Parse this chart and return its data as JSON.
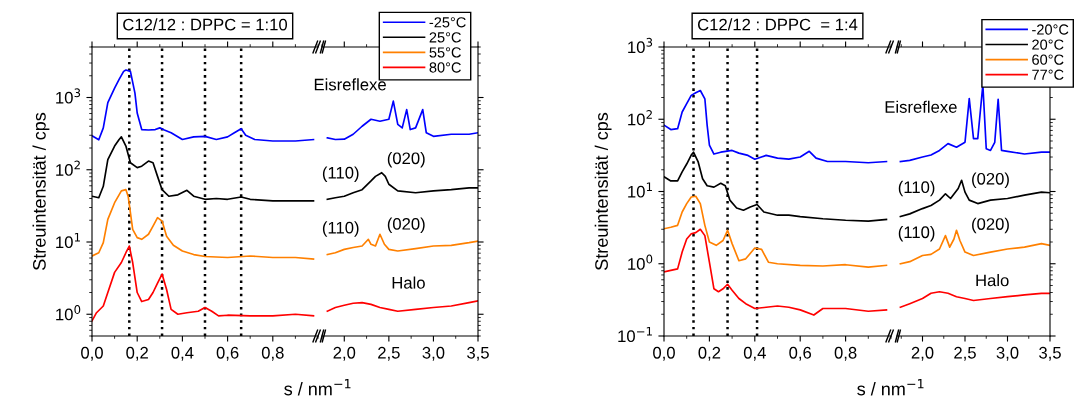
{
  "chart_data": [
    {
      "type": "line",
      "title": "C12/12 : DPPC = 1:10",
      "ylabel": "Streuintensität / cps",
      "xlabel": "s / nm$^{−1}$",
      "log": "y",
      "grid": false,
      "legend": false,
      "xlim": [
        0,
        1.0
      ],
      "xticks": [
        {
          "value": 0,
          "label": "0,0"
        },
        {
          "value": 0.2,
          "label": "0,2"
        },
        {
          "value": 0.4,
          "label": "0,4"
        },
        {
          "value": 0.6,
          "label": "0,6"
        },
        {
          "value": 0.8,
          "label": "0,8"
        }
      ],
      "ylim": [
        0.5,
        5000
      ],
      "yticks": [
        {
          "value": 1,
          "label": "10$^{0}$"
        },
        {
          "value": 10,
          "label": "10$^{1}$"
        },
        {
          "value": 100,
          "label": "10$^{2}$"
        },
        {
          "value": 1000,
          "label": "10$^{3}$"
        }
      ],
      "ref_lines": [
        {
          "axis": "x",
          "value": 0.165,
          "color": "#000000",
          "line_style": "dotted"
        },
        {
          "axis": "x",
          "value": 0.31,
          "color": "#000000",
          "line_style": "dotted"
        },
        {
          "axis": "x",
          "value": 0.5,
          "color": "#000000",
          "line_style": "dotted"
        },
        {
          "axis": "x",
          "value": 0.66,
          "color": "#000000",
          "line_style": "dotted"
        }
      ],
      "series": [
        {
          "color": "#0000ff",
          "x": [
            0,
            0.03,
            0.05,
            0.07,
            0.1,
            0.12,
            0.14,
            0.15,
            0.17,
            0.19,
            0.2,
            0.22,
            0.25,
            0.28,
            0.3,
            0.32,
            0.35,
            0.4,
            0.45,
            0.5,
            0.55,
            0.6,
            0.63,
            0.66,
            0.68,
            0.72,
            0.8,
            0.9,
            0.98
          ],
          "values": [
            295,
            260,
            380,
            850,
            1350,
            1780,
            2300,
            2400,
            2300,
            1150,
            610,
            360,
            355,
            360,
            380,
            355,
            325,
            262,
            285,
            290,
            262,
            285,
            325,
            370,
            300,
            262,
            250,
            250,
            262
          ]
        },
        {
          "color": "#000000",
          "x": [
            0,
            0.03,
            0.05,
            0.07,
            0.1,
            0.12,
            0.13,
            0.15,
            0.17,
            0.2,
            0.22,
            0.25,
            0.27,
            0.29,
            0.31,
            0.34,
            0.38,
            0.42,
            0.45,
            0.5,
            0.55,
            0.6,
            0.66,
            0.7,
            0.8,
            0.9,
            0.98
          ],
          "values": [
            43,
            41,
            59,
            138,
            213,
            262,
            285,
            213,
            125,
            107,
            112,
            132,
            125,
            81,
            53,
            43,
            45,
            52,
            43,
            39,
            40,
            39,
            42,
            39,
            37,
            37,
            37
          ]
        },
        {
          "color": "#ff8000",
          "x": [
            0,
            0.03,
            0.05,
            0.07,
            0.1,
            0.13,
            0.15,
            0.16,
            0.18,
            0.2,
            0.22,
            0.25,
            0.27,
            0.29,
            0.31,
            0.33,
            0.36,
            0.4,
            0.45,
            0.5,
            0.6,
            0.7,
            0.8,
            0.9,
            0.98
          ],
          "values": [
            6.4,
            7.1,
            9.8,
            20.6,
            35,
            51,
            53,
            43,
            15,
            11.5,
            10.9,
            12.8,
            16.6,
            21.7,
            19.5,
            12,
            9,
            7.5,
            6.7,
            6.3,
            6.1,
            6.4,
            6.1,
            6.1,
            5.8
          ]
        },
        {
          "color": "#ff0000",
          "x": [
            0,
            0.02,
            0.05,
            0.07,
            0.1,
            0.13,
            0.15,
            0.165,
            0.18,
            0.2,
            0.22,
            0.25,
            0.27,
            0.29,
            0.31,
            0.33,
            0.35,
            0.38,
            0.42,
            0.47,
            0.5,
            0.53,
            0.56,
            0.6,
            0.7,
            0.8,
            0.9,
            0.98
          ],
          "values": [
            0.81,
            1.05,
            1.3,
            2.0,
            3.8,
            5.2,
            7.1,
            8.8,
            5.2,
            2.0,
            1.5,
            1.6,
            2.0,
            2.7,
            3.6,
            2.2,
            1.17,
            1.0,
            1.05,
            1.1,
            1.24,
            1.1,
            0.95,
            0.97,
            0.95,
            0.95,
            1.0,
            0.95
          ]
        }
      ]
    },
    {
      "type": "line",
      "log": "y",
      "grid": false,
      "legend": "top right",
      "tick_labels": "x",
      "xlim": [
        1.75,
        3.5
      ],
      "xticks": [
        {
          "value": 2.0,
          "label": "2,0"
        },
        {
          "value": 2.5,
          "label": "2,5"
        },
        {
          "value": 3.0,
          "label": "3,0"
        },
        {
          "value": 3.5,
          "label": "3,5"
        }
      ],
      "ylim": [
        0.5,
        5000
      ],
      "yticks": [
        1,
        10,
        100,
        1000
      ],
      "annotations": [
        "Eisreflexe",
        "(110)",
        "(020)",
        "(110)",
        "(020)",
        "Halo"
      ],
      "series": [
        {
          "name": "-25°C",
          "color": "#0000ff",
          "x": [
            1.81,
            1.9,
            2.0,
            2.1,
            2.2,
            2.3,
            2.4,
            2.5,
            2.55,
            2.6,
            2.65,
            2.7,
            2.74,
            2.8,
            2.88,
            2.92,
            3.0,
            3.2,
            3.4,
            3.5
          ],
          "values": [
            276,
            262,
            265,
            310,
            400,
            500,
            470,
            500,
            890,
            425,
            380,
            680,
            360,
            380,
            680,
            325,
            290,
            310,
            310,
            325
          ]
        },
        {
          "name": "25°C",
          "color": "#000000",
          "x": [
            1.81,
            1.9,
            2.0,
            2.1,
            2.2,
            2.3,
            2.35,
            2.42,
            2.46,
            2.5,
            2.6,
            2.8,
            3.0,
            3.2,
            3.4,
            3.5
          ],
          "values": [
            39,
            41,
            43,
            48,
            53,
            70,
            81,
            91,
            81,
            63,
            51,
            48,
            51,
            53,
            56,
            56
          ]
        },
        {
          "name": "55°C",
          "color": "#ff8000",
          "x": [
            1.81,
            1.9,
            2.0,
            2.1,
            2.2,
            2.27,
            2.3,
            2.35,
            2.4,
            2.45,
            2.5,
            2.6,
            2.8,
            3.0,
            3.2,
            3.4,
            3.5
          ],
          "values": [
            6.7,
            7.1,
            7.9,
            8.4,
            8.8,
            10.9,
            9.3,
            8.8,
            12.8,
            9.3,
            7.9,
            7.5,
            8.1,
            8.8,
            9.0,
            9.8,
            10.3
          ]
        },
        {
          "name": "80°C",
          "color": "#ff0000",
          "x": [
            1.81,
            1.9,
            2.0,
            2.1,
            2.2,
            2.3,
            2.4,
            2.5,
            2.6,
            2.8,
            3.0,
            3.2,
            3.4,
            3.5
          ],
          "values": [
            1.1,
            1.24,
            1.33,
            1.42,
            1.45,
            1.37,
            1.24,
            1.17,
            1.1,
            1.17,
            1.24,
            1.3,
            1.45,
            1.53
          ]
        }
      ]
    },
    {
      "type": "line",
      "title": "C12/12 : DPPC  = 1:4",
      "ylabel": "Streuintensität / cps",
      "xlabel": "s / nm$^{−1}$",
      "log": "y",
      "grid": false,
      "legend": false,
      "xlim": [
        0,
        1.0
      ],
      "xticks": [
        {
          "value": 0,
          "label": "0,0"
        },
        {
          "value": 0.2,
          "label": "0,2"
        },
        {
          "value": 0.4,
          "label": "0,4"
        },
        {
          "value": 0.6,
          "label": "0,6"
        },
        {
          "value": 0.8,
          "label": "0,8"
        }
      ],
      "ylim": [
        0.1,
        1000
      ],
      "yticks": [
        {
          "value": 0.1,
          "label": "10$^{−1}$"
        },
        {
          "value": 1,
          "label": "10$^{0}$"
        },
        {
          "value": 10,
          "label": "10$^{1}$"
        },
        {
          "value": 100,
          "label": "10$^{2}$"
        },
        {
          "value": 1000,
          "label": "10$^{3}$"
        }
      ],
      "ref_lines": [
        {
          "axis": "x",
          "value": 0.13,
          "color": "#000000",
          "line_style": "dotted"
        },
        {
          "axis": "x",
          "value": 0.28,
          "color": "#000000",
          "line_style": "dotted"
        },
        {
          "axis": "x",
          "value": 0.41,
          "color": "#000000",
          "line_style": "dotted"
        }
      ],
      "series": [
        {
          "color": "#0000ff",
          "x": [
            0,
            0.03,
            0.06,
            0.08,
            0.1,
            0.12,
            0.14,
            0.16,
            0.18,
            0.19,
            0.2,
            0.22,
            0.25,
            0.3,
            0.33,
            0.37,
            0.4,
            0.45,
            0.5,
            0.55,
            0.6,
            0.64,
            0.67,
            0.72,
            0.8,
            0.9,
            0.98
          ],
          "values": [
            83,
            72,
            74,
            126,
            165,
            214,
            233,
            250,
            192,
            83,
            44,
            33,
            35,
            37,
            34,
            31.6,
            28,
            31.6,
            29,
            28,
            30,
            36,
            29,
            26,
            26,
            25,
            26
          ]
        },
        {
          "color": "#000000",
          "x": [
            0,
            0.03,
            0.06,
            0.08,
            0.1,
            0.12,
            0.13,
            0.15,
            0.17,
            0.19,
            0.22,
            0.25,
            0.27,
            0.29,
            0.32,
            0.35,
            0.38,
            0.41,
            0.44,
            0.5,
            0.55,
            0.6,
            0.7,
            0.8,
            0.9,
            0.98
          ],
          "values": [
            16,
            14,
            14,
            18.7,
            24,
            32,
            35,
            26,
            15,
            12,
            11.5,
            13,
            12,
            7.6,
            5.9,
            5.5,
            6.1,
            6.6,
            5.2,
            4.7,
            4.7,
            4.5,
            4.2,
            4.0,
            3.9,
            4.1
          ]
        },
        {
          "color": "#ff8000",
          "x": [
            0,
            0.03,
            0.06,
            0.08,
            0.1,
            0.12,
            0.14,
            0.16,
            0.18,
            0.2,
            0.23,
            0.26,
            0.28,
            0.3,
            0.33,
            0.36,
            0.4,
            0.43,
            0.46,
            0.5,
            0.6,
            0.7,
            0.8,
            0.9,
            0.98
          ],
          "values": [
            3.05,
            3.2,
            3.4,
            5.2,
            6.8,
            8.4,
            8.6,
            6.8,
            3.4,
            2.0,
            1.8,
            2.1,
            2.9,
            1.9,
            1.1,
            1.17,
            1.65,
            1.58,
            1.05,
            1.0,
            0.95,
            0.93,
            0.97,
            0.9,
            0.95
          ]
        },
        {
          "color": "#ff0000",
          "x": [
            0,
            0.03,
            0.06,
            0.08,
            0.1,
            0.12,
            0.14,
            0.16,
            0.18,
            0.2,
            0.22,
            0.24,
            0.26,
            0.28,
            0.3,
            0.33,
            0.36,
            0.4,
            0.45,
            0.5,
            0.55,
            0.6,
            0.66,
            0.7,
            0.8,
            0.9,
            0.98
          ],
          "values": [
            0.77,
            0.81,
            0.85,
            1.45,
            2.2,
            2.6,
            2.7,
            3.0,
            2.45,
            1.05,
            0.45,
            0.41,
            0.45,
            0.52,
            0.43,
            0.33,
            0.28,
            0.24,
            0.25,
            0.26,
            0.25,
            0.23,
            0.195,
            0.24,
            0.24,
            0.22,
            0.23
          ]
        }
      ]
    },
    {
      "type": "line",
      "log": "y",
      "grid": false,
      "legend": "top right",
      "tick_labels": "x",
      "xlim": [
        1.7,
        3.5
      ],
      "xticks": [
        {
          "value": 2.0,
          "label": "2,0"
        },
        {
          "value": 2.5,
          "label": "2,5"
        },
        {
          "value": 3.0,
          "label": "3,0"
        },
        {
          "value": 3.5,
          "label": "3,5"
        }
      ],
      "ylim": [
        0.1,
        1000
      ],
      "yticks": [
        0.1,
        1,
        10,
        100,
        1000
      ],
      "annotations": [
        "Eisreflexe",
        "(110)",
        "(020)",
        "(110)",
        "(020)",
        "Halo"
      ],
      "series": [
        {
          "name": "-20°C",
          "color": "#0000ff",
          "x": [
            1.74,
            1.85,
            2.0,
            2.1,
            2.2,
            2.3,
            2.4,
            2.5,
            2.55,
            2.6,
            2.65,
            2.71,
            2.75,
            2.8,
            2.85,
            2.89,
            2.93,
            3.0,
            3.2,
            3.4,
            3.5
          ],
          "values": [
            26,
            27,
            30,
            32,
            37,
            46,
            41,
            48,
            193,
            54,
            54,
            300,
            39,
            37,
            48,
            189,
            37,
            36,
            33,
            35,
            35
          ]
        },
        {
          "name": "20°C",
          "color": "#000000",
          "x": [
            1.74,
            1.85,
            2.0,
            2.1,
            2.2,
            2.27,
            2.33,
            2.42,
            2.46,
            2.5,
            2.55,
            2.65,
            2.8,
            3.0,
            3.2,
            3.4,
            3.5
          ],
          "values": [
            4.5,
            4.9,
            5.8,
            6.4,
            7.6,
            9.3,
            8.0,
            11,
            14.3,
            9.8,
            7.6,
            6.8,
            7.6,
            8.0,
            8.9,
            9.8,
            9.6
          ]
        },
        {
          "name": "60°C",
          "color": "#ff8000",
          "x": [
            1.74,
            1.85,
            2.0,
            2.1,
            2.2,
            2.27,
            2.32,
            2.37,
            2.4,
            2.44,
            2.5,
            2.6,
            2.8,
            3.0,
            3.2,
            3.4,
            3.5
          ],
          "values": [
            1.0,
            1.07,
            1.3,
            1.35,
            1.6,
            2.45,
            1.7,
            2.2,
            2.9,
            2.1,
            1.45,
            1.3,
            1.45,
            1.6,
            1.7,
            1.9,
            1.8
          ]
        },
        {
          "name": "77°C",
          "color": "#ff0000",
          "x": [
            1.74,
            1.85,
            2.0,
            2.1,
            2.2,
            2.3,
            2.4,
            2.5,
            2.6,
            2.8,
            3.0,
            3.2,
            3.4,
            3.5
          ],
          "values": [
            0.25,
            0.28,
            0.33,
            0.39,
            0.41,
            0.39,
            0.35,
            0.33,
            0.31,
            0.33,
            0.35,
            0.37,
            0.39,
            0.39
          ]
        }
      ]
    }
  ]
}
